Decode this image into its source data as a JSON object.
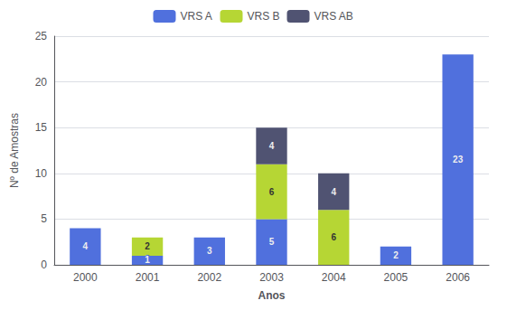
{
  "chart_data": {
    "type": "bar",
    "stacked": true,
    "categories": [
      "2000",
      "2001",
      "2002",
      "2003",
      "2004",
      "2005",
      "2006"
    ],
    "series": [
      {
        "name": "VRS A",
        "values": [
          4,
          1,
          3,
          5,
          0,
          2,
          23
        ]
      },
      {
        "name": "VRS B",
        "values": [
          0,
          2,
          0,
          6,
          6,
          0,
          0
        ]
      },
      {
        "name": "VRS AB",
        "values": [
          0,
          0,
          0,
          4,
          4,
          0,
          0
        ]
      }
    ],
    "xlabel": "Anos",
    "ylabel": "Nº de Amostras",
    "ylim": [
      0,
      25
    ],
    "yticks": [
      0,
      5,
      10,
      15,
      20,
      25
    ],
    "grid": true,
    "legend": "upper center",
    "data_labels": true
  }
}
